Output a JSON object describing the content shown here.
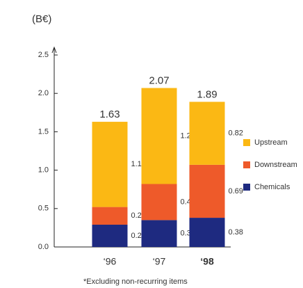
{
  "chart_data": {
    "type": "stacked-bar",
    "y_label": "(B€)",
    "categories": [
      "‘96",
      "‘97",
      "‘98"
    ],
    "series": [
      {
        "name": "Chemicals",
        "color": "#1e2a80",
        "values": [
          0.29,
          0.35,
          0.38
        ]
      },
      {
        "name": "Downstream",
        "color": "#ee5a2a",
        "values": [
          0.23,
          0.47,
          0.69
        ]
      },
      {
        "name": "Upstream",
        "color": "#fbb814",
        "values": [
          1.11,
          1.25,
          0.82
        ]
      }
    ],
    "totals": [
      1.63,
      2.07,
      1.89
    ],
    "ylim": [
      0,
      2.6
    ],
    "yticks": [
      {
        "value": 0,
        "label": "0.0"
      },
      0.5,
      {
        "value": 1,
        "label": "1.0"
      },
      1.5,
      {
        "value": 2,
        "label": "2.0"
      },
      2.5
    ],
    "footnote": "*Excluding non-recurring items"
  }
}
